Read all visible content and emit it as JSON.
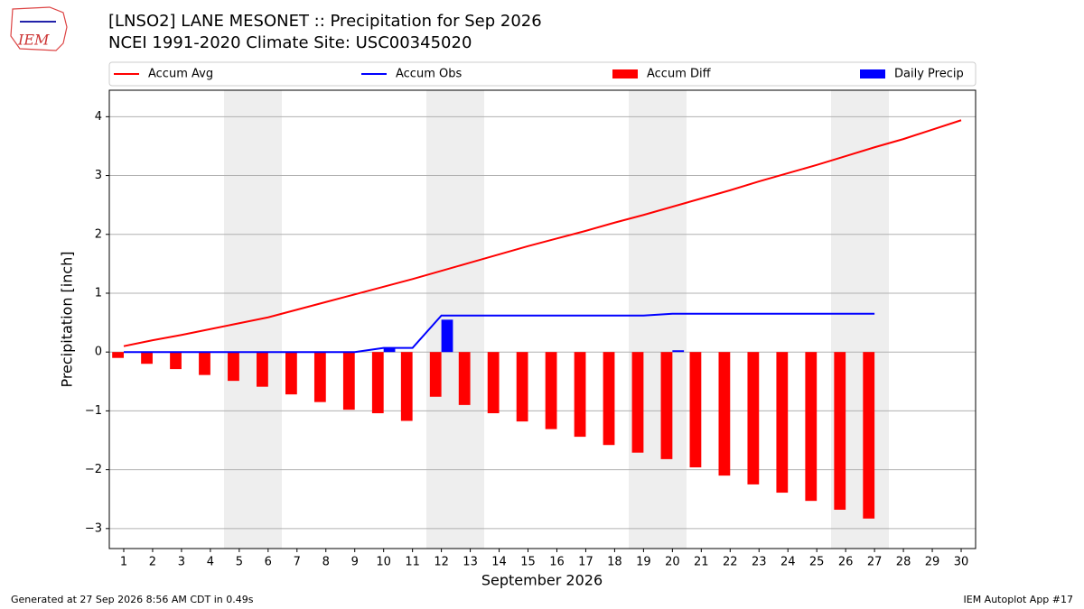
{
  "chart_data": {
    "type": "bar_line",
    "logo_text": "IEM",
    "title": "[LNSO2] LANE MESONET :: Precipitation for Sep 2026",
    "subtitle": "NCEI 1991-2020 Climate Site: USC00345020",
    "ylabel": "Precipitation [inch]",
    "xlabel": "September 2026",
    "footer_left": "Generated at 27 Sep 2026 8:56 AM CDT in 0.49s",
    "footer_right": "IEM Autoplot App #17",
    "x": [
      1,
      2,
      3,
      4,
      5,
      6,
      7,
      8,
      9,
      10,
      11,
      12,
      13,
      14,
      15,
      16,
      17,
      18,
      19,
      20,
      21,
      22,
      23,
      24,
      25,
      26,
      27,
      28,
      29,
      30
    ],
    "xlim": [
      0.5,
      30.5
    ],
    "xticks": [
      1,
      2,
      3,
      4,
      5,
      6,
      7,
      8,
      9,
      10,
      11,
      12,
      13,
      14,
      15,
      16,
      17,
      18,
      19,
      20,
      21,
      22,
      23,
      24,
      25,
      26,
      27,
      28,
      29,
      30
    ],
    "ylim": [
      -3.34,
      4.45
    ],
    "yticks": [
      {
        "value": -3,
        "label": "−3"
      },
      {
        "value": -2,
        "label": "−2"
      },
      {
        "value": -1,
        "label": "−1"
      },
      0,
      1,
      2,
      3,
      4
    ],
    "grid": true,
    "series": [
      {
        "name": "Accum Avg",
        "kind": "line",
        "color": "#ff0000",
        "values": [
          0.1,
          0.2,
          0.29,
          0.39,
          0.49,
          0.59,
          0.72,
          0.85,
          0.98,
          1.11,
          1.24,
          1.38,
          1.52,
          1.66,
          1.8,
          1.93,
          2.06,
          2.2,
          2.33,
          2.47,
          2.61,
          2.75,
          2.9,
          3.04,
          3.18,
          3.33,
          3.48,
          3.62,
          3.78,
          3.94
        ]
      },
      {
        "name": "Accum Obs",
        "kind": "line",
        "color": "#0000ff",
        "values": [
          0,
          0,
          0,
          0,
          0,
          0,
          0,
          0,
          0,
          0.07,
          0.07,
          0.62,
          0.62,
          0.62,
          0.62,
          0.62,
          0.62,
          0.62,
          0.62,
          0.65,
          0.65,
          0.65,
          0.65,
          0.65,
          0.65,
          0.65,
          0.65,
          null,
          null,
          null
        ]
      },
      {
        "name": "Accum Diff",
        "kind": "bar",
        "offset": -0.4,
        "color": "#ff0000",
        "values": [
          -0.1,
          -0.2,
          -0.29,
          -0.39,
          -0.49,
          -0.59,
          -0.72,
          -0.85,
          -0.98,
          -1.04,
          -1.17,
          -0.76,
          -0.9,
          -1.04,
          -1.18,
          -1.31,
          -1.44,
          -1.58,
          -1.71,
          -1.82,
          -1.96,
          -2.1,
          -2.25,
          -2.39,
          -2.53,
          -2.68,
          -2.83,
          null,
          null,
          null
        ]
      },
      {
        "name": "Daily Precip",
        "kind": "bar",
        "offset": 0.4,
        "color": "#0000ff",
        "values": [
          0,
          0,
          0,
          0,
          0,
          0,
          0,
          0,
          0,
          0.07,
          0,
          0.55,
          0,
          0,
          0,
          0,
          0,
          0,
          0,
          0.03,
          0,
          0,
          0,
          0,
          0,
          0,
          0,
          null,
          null,
          null
        ]
      }
    ]
  }
}
